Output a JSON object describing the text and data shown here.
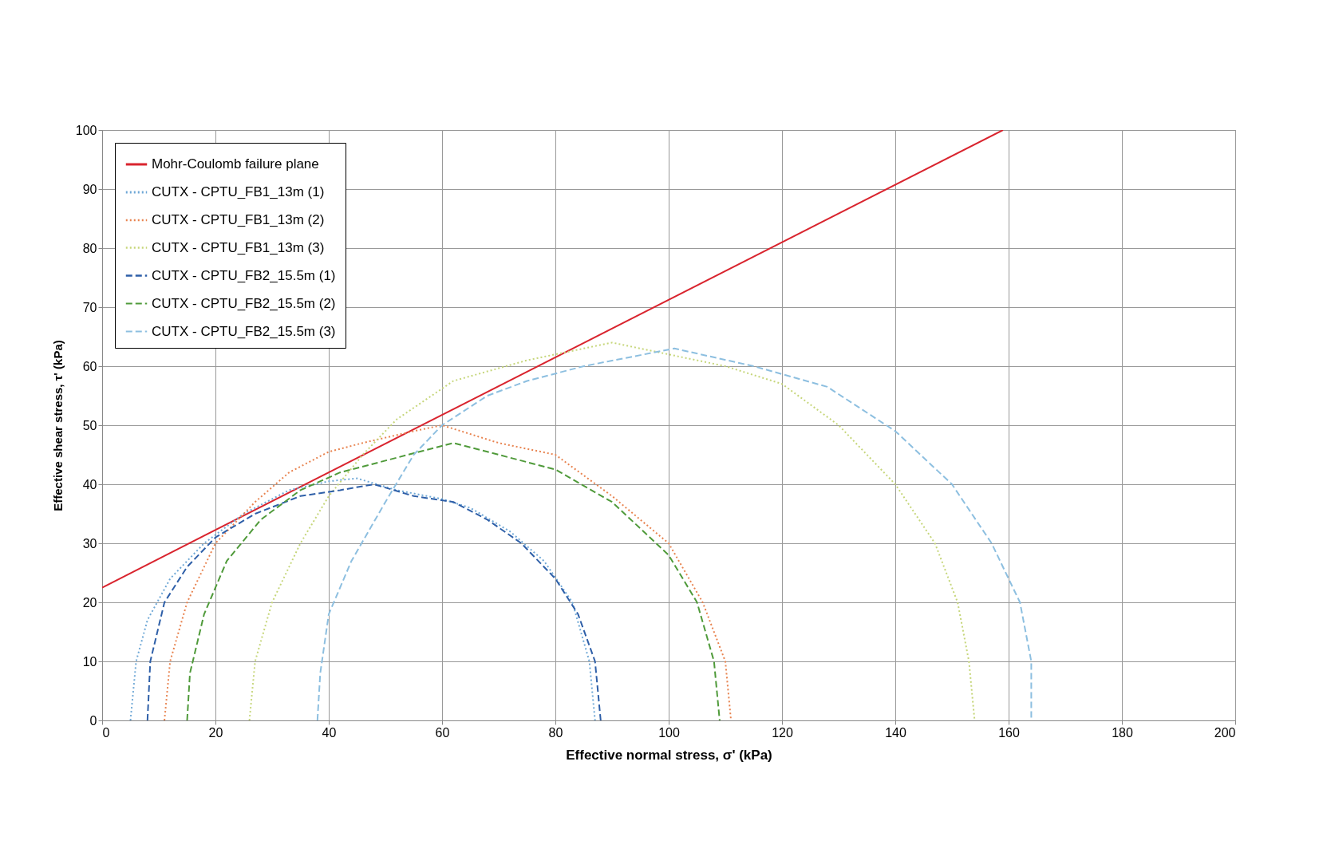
{
  "chart_data": {
    "type": "line",
    "xlabel": "Effective normal stress, σ' (kPa)",
    "ylabel": "Effective shear stress, τ' (kPa)",
    "xlim": [
      0,
      200
    ],
    "xticks": [
      0,
      20,
      40,
      60,
      80,
      100,
      120,
      140,
      160,
      180,
      200
    ],
    "ylim": [
      0,
      100
    ],
    "yticks": [
      0,
      10,
      20,
      30,
      40,
      50,
      60,
      70,
      80,
      90,
      100
    ],
    "grid": true,
    "legend": "top left",
    "marker": "none",
    "series": [
      {
        "name": "Mohr-Coulomb failure plane",
        "color": "#d9242e",
        "line_style": "solid",
        "x": [
          0,
          159
        ],
        "values": [
          22.5,
          100
        ]
      },
      {
        "name": "CUTX - CPTU_FB1_13m (1)",
        "color": "#6fa8d6",
        "line_style": "dotted",
        "x": [
          5,
          6,
          8,
          12,
          18,
          25,
          33,
          40,
          45,
          52,
          60,
          65,
          72,
          78,
          83,
          86,
          87
        ],
        "values": [
          0,
          10,
          17,
          24,
          30,
          35,
          39,
          40.5,
          41,
          39,
          37.5,
          36,
          32,
          27,
          20,
          10,
          0
        ]
      },
      {
        "name": "CUTX - CPTU_FB1_13m (2)",
        "color": "#e8834f",
        "line_style": "dotted",
        "x": [
          11,
          12,
          15,
          20,
          27,
          33,
          40,
          46,
          55,
          60,
          70,
          80,
          90,
          100,
          106,
          110,
          111
        ],
        "values": [
          0,
          10,
          20,
          30,
          37,
          42,
          45.5,
          47,
          49,
          50,
          47,
          45,
          38,
          30,
          20,
          10,
          0
        ]
      },
      {
        "name": "CUTX - CPTU_FB1_13m (3)",
        "color": "#c6d67a",
        "line_style": "dotted",
        "x": [
          26,
          27,
          30,
          35,
          40,
          46,
          52,
          62,
          75,
          90,
          100,
          110,
          120,
          130,
          140,
          147,
          151,
          153,
          154
        ],
        "values": [
          0,
          10,
          20,
          30,
          38,
          45,
          51,
          57.5,
          61,
          64,
          62,
          60,
          57,
          50,
          40,
          30,
          20,
          10,
          0
        ]
      },
      {
        "name": "CUTX - CPTU_FB2_15.5m (1)",
        "color": "#2e5fa8",
        "line_style": "dashed",
        "x": [
          8,
          8.5,
          11,
          15,
          20,
          27,
          35,
          42,
          48,
          55,
          62,
          68,
          74,
          80,
          84,
          87,
          88
        ],
        "values": [
          0,
          10,
          20,
          26,
          31,
          35,
          38,
          39,
          40,
          38,
          37,
          34,
          30,
          24,
          18,
          10,
          0
        ]
      },
      {
        "name": "CUTX - CPTU_FB2_15.5m (2)",
        "color": "#4f9a3a",
        "line_style": "dashed",
        "x": [
          15,
          15.5,
          18,
          22,
          28,
          35,
          42,
          50,
          56,
          62,
          70,
          80,
          90,
          100,
          105,
          108,
          109
        ],
        "values": [
          0,
          8,
          18,
          27,
          34,
          39,
          42,
          44,
          45.5,
          47,
          45,
          42.5,
          37,
          28,
          20,
          10,
          0
        ]
      },
      {
        "name": "CUTX - CPTU_FB2_15.5m (3)",
        "color": "#8dbfe0",
        "line_style": "dashed",
        "x": [
          38,
          38.5,
          40,
          44,
          50,
          55,
          60,
          68,
          75,
          85,
          101,
          115,
          128,
          140,
          150,
          157,
          162,
          164,
          164
        ],
        "values": [
          0,
          8,
          18,
          27,
          37,
          45,
          50,
          55,
          57.5,
          60,
          63,
          60,
          56.5,
          49,
          40,
          30,
          20,
          10,
          0
        ]
      }
    ]
  }
}
